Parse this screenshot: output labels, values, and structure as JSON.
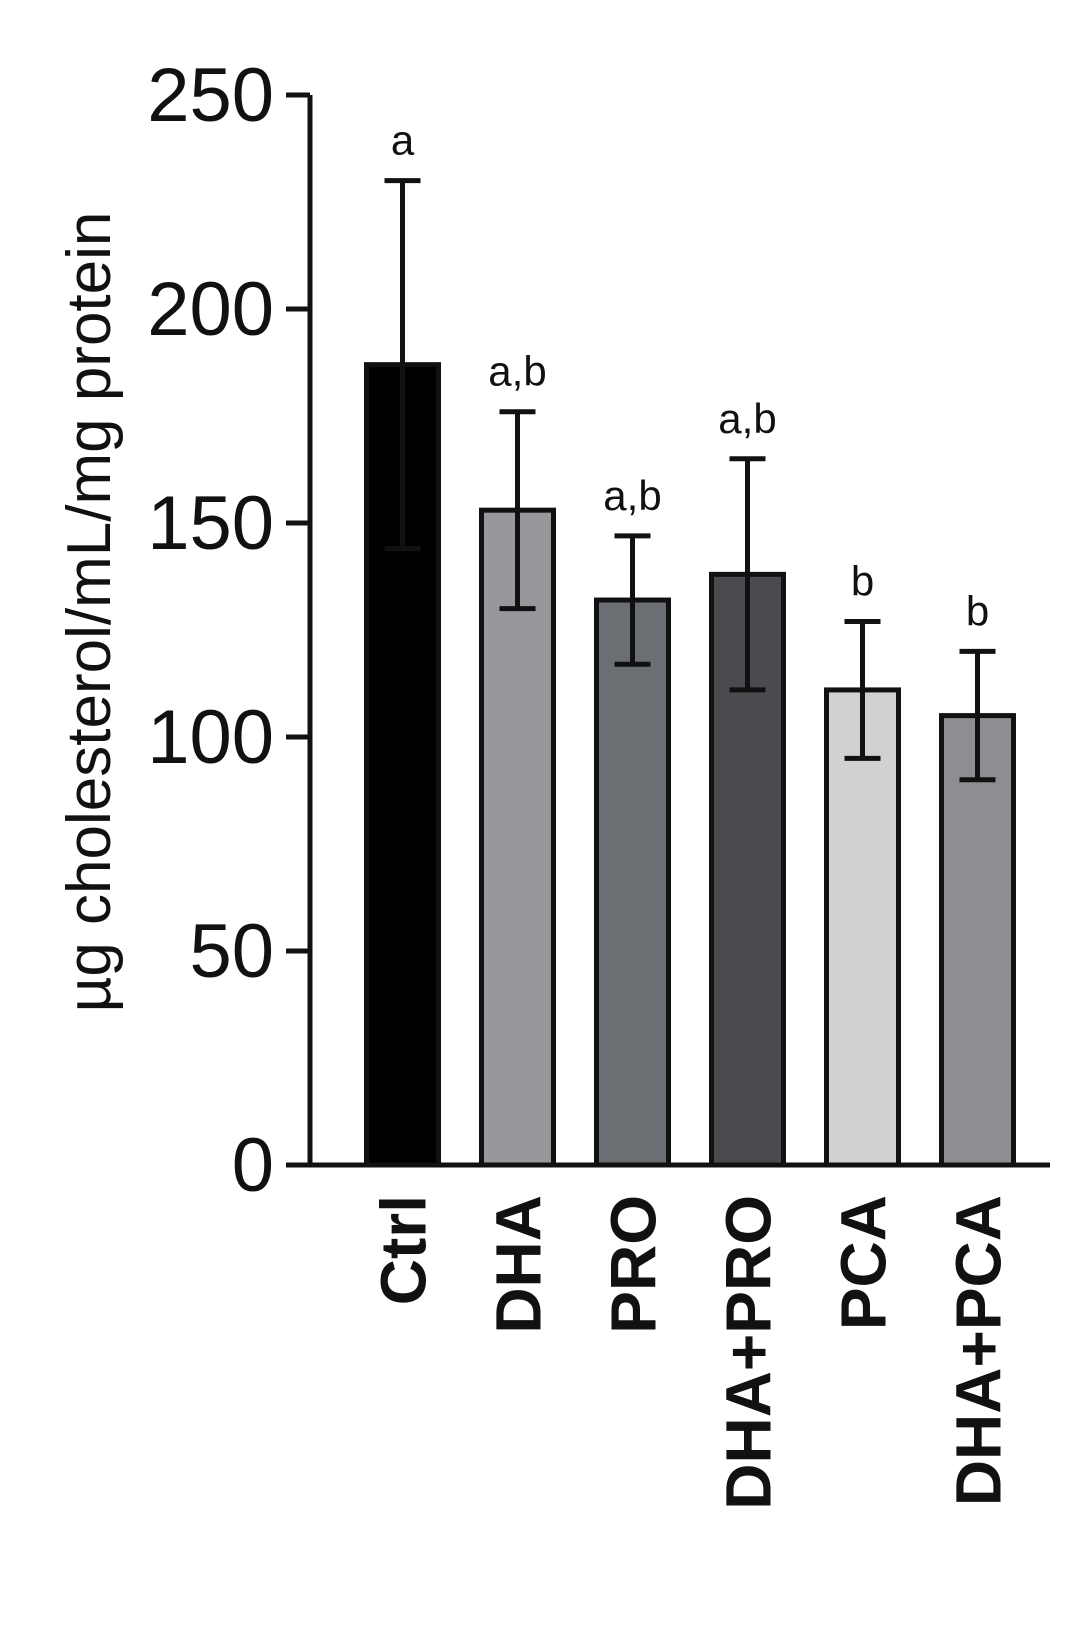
{
  "chart_data": {
    "type": "bar",
    "title": "",
    "xlabel": "",
    "ylabel": "µg cholesterol/mL/mg protein",
    "ylim": [
      0,
      250
    ],
    "yticks": [
      0,
      50,
      100,
      150,
      200,
      250
    ],
    "grid": false,
    "legend": "none",
    "categories": [
      "Ctrl",
      "DHA",
      "PRO",
      "DHA+PRO",
      "PCA",
      "DHA+PCA"
    ],
    "values": [
      187,
      153,
      132,
      138,
      111,
      105
    ],
    "error": [
      43,
      23,
      15,
      27,
      16,
      15
    ],
    "significance": [
      "a",
      "a,b",
      "a,b",
      "a,b",
      "b",
      "b"
    ],
    "colors": [
      "#000000",
      "#98979c",
      "#6b6e72",
      "#4a4b4f",
      "#d0d1d3",
      "#8c8e93"
    ]
  }
}
